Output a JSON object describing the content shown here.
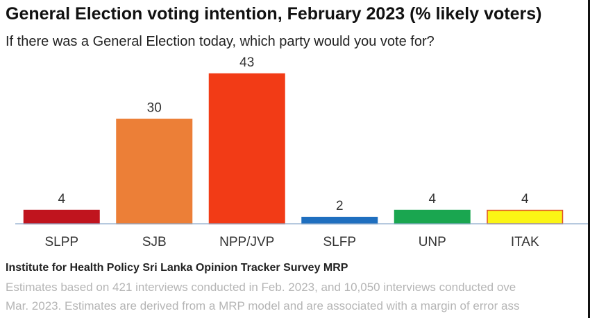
{
  "title": "General Election voting intention, February 2023 (% likely voters)",
  "subtitle": "If there was a General Election today, which party would you vote for?",
  "chart_data": {
    "type": "bar",
    "title": "General Election voting intention, February 2023 (% likely voters)",
    "subtitle": "If there was a General Election today, which party would you vote for?",
    "xlabel": "",
    "ylabel": "",
    "categories": [
      "SLPP",
      "SJB",
      "NPP/JVP",
      "SLFP",
      "UNP",
      "ITAK"
    ],
    "values": [
      4,
      30,
      43,
      2,
      4,
      4
    ],
    "colors": [
      "#c0141e",
      "#ec7f37",
      "#f23b16",
      "#1f6fbf",
      "#1aa650",
      "#fbf515"
    ],
    "bar_borders": [
      "#c0141e",
      "#ec7f37",
      "#f23b16",
      "#1f6fbf",
      "#1aa650",
      "#e0502a"
    ],
    "ylim": [
      0,
      45
    ],
    "grid": false,
    "legend": "none"
  },
  "source": "Institute for Health Policy Sri Lanka Opinion Tracker Survey MRP",
  "note_line1": "Estimates based on 421 interviews conducted in Feb. 2023, and 10,050 interviews conducted ove",
  "note_line2": "Mar. 2023. Estimates are derived from a MRP model and are associated with a margin of error ass"
}
